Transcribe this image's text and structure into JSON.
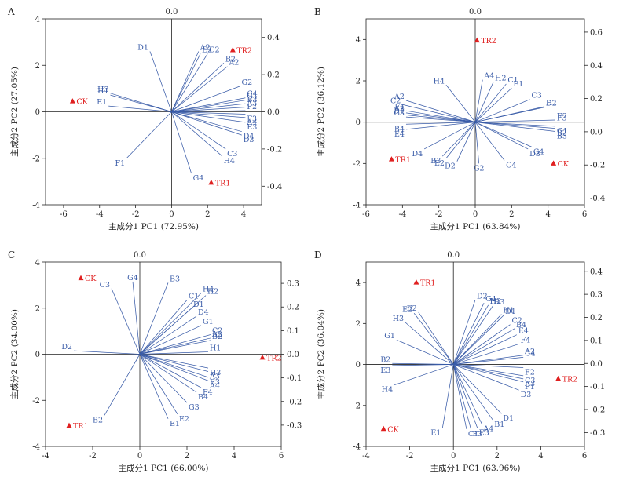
{
  "figure": {
    "colors": {
      "vector": "#3a5ca8",
      "sample": "#e02020",
      "axis": "#222222"
    },
    "panels": [
      {
        "letter": "A",
        "top_label": "0.0",
        "xlabel": "主成分1 PC1 (72.95%)",
        "ylabel": "主成分2 PC2 (27.05%)",
        "xlim": [
          -7,
          5
        ],
        "ylim": [
          -4,
          4
        ],
        "xticks": [
          -6,
          -4,
          -2,
          0,
          2,
          4
        ],
        "yticks": [
          -4,
          -2,
          0,
          2,
          4
        ],
        "rticks": [
          -0.4,
          -0.2,
          0.0,
          0.2,
          0.4
        ],
        "rlim": [
          -0.5,
          0.5
        ],
        "samples": [
          {
            "name": "CK",
            "x": -5.5,
            "y": 0.45
          },
          {
            "name": "TR2",
            "x": 3.4,
            "y": 2.65
          },
          {
            "name": "TR1",
            "x": 2.2,
            "y": -3.05
          }
        ],
        "vectors": [
          {
            "name": "D1",
            "x": -1.2,
            "y": 2.6
          },
          {
            "name": "A2",
            "x": 1.5,
            "y": 2.6
          },
          {
            "name": "E2",
            "x": 1.6,
            "y": 2.5
          },
          {
            "name": "C2",
            "x": 2.0,
            "y": 2.5
          },
          {
            "name": "B2",
            "x": 2.9,
            "y": 2.1
          },
          {
            "name": "A2",
            "x": 3.1,
            "y": 1.95
          },
          {
            "name": "G2",
            "x": 3.8,
            "y": 1.1
          },
          {
            "name": "H3",
            "x": -3.4,
            "y": 0.8
          },
          {
            "name": "H1",
            "x": -3.4,
            "y": 0.72
          },
          {
            "name": "E1",
            "x": -3.5,
            "y": 0.25
          },
          {
            "name": "C4",
            "x": 4.1,
            "y": 0.6
          },
          {
            "name": "G1",
            "x": 4.1,
            "y": 0.5
          },
          {
            "name": "B3",
            "x": 4.1,
            "y": 0.35
          },
          {
            "name": "A3",
            "x": 4.1,
            "y": 0.2
          },
          {
            "name": "F2",
            "x": 4.1,
            "y": 0.05
          },
          {
            "name": "F3",
            "x": 4.1,
            "y": -0.1
          },
          {
            "name": "A4",
            "x": 4.1,
            "y": -0.25
          },
          {
            "name": "E3",
            "x": 4.1,
            "y": -0.45
          },
          {
            "name": "D4",
            "x": 3.9,
            "y": -0.85
          },
          {
            "name": "D3",
            "x": 3.9,
            "y": -1.0
          },
          {
            "name": "C3",
            "x": 3.0,
            "y": -1.6
          },
          {
            "name": "H4",
            "x": 2.8,
            "y": -1.9
          },
          {
            "name": "F1",
            "x": -2.5,
            "y": -2.0
          },
          {
            "name": "G4",
            "x": 1.1,
            "y": -2.65
          }
        ]
      },
      {
        "letter": "B",
        "top_label": "0.0",
        "xlabel": "主成分1 PC1 (63.84%)",
        "ylabel": "主成分2 PC2 (36.12%)",
        "xlim": [
          -6,
          6
        ],
        "ylim": [
          -4,
          5
        ],
        "xticks": [
          -6,
          -4,
          -2,
          0,
          2,
          4,
          6
        ],
        "yticks": [
          -4,
          -2,
          0,
          2,
          4
        ],
        "rticks": [
          -0.4,
          -0.2,
          0.0,
          0.2,
          0.4,
          0.6
        ],
        "rlim": [
          -0.44,
          0.68
        ],
        "samples": [
          {
            "name": "TR2",
            "x": 0.1,
            "y": 3.95
          },
          {
            "name": "TR1",
            "x": -4.6,
            "y": -1.8
          },
          {
            "name": "CK",
            "x": 4.3,
            "y": -2.0
          }
        ],
        "vectors": [
          {
            "name": "A4",
            "x": 0.4,
            "y": 2.05
          },
          {
            "name": "H4",
            "x": -1.6,
            "y": 1.8
          },
          {
            "name": "H2",
            "x": 1.0,
            "y": 1.95
          },
          {
            "name": "C1",
            "x": 1.7,
            "y": 1.85
          },
          {
            "name": "E1",
            "x": 2.0,
            "y": 1.65
          },
          {
            "name": "C3",
            "x": 3.0,
            "y": 1.1
          },
          {
            "name": "A2",
            "x": -3.8,
            "y": 1.05
          },
          {
            "name": "C2",
            "x": -4.0,
            "y": 0.85
          },
          {
            "name": "H1",
            "x": 3.8,
            "y": 0.75
          },
          {
            "name": "D2",
            "x": 3.8,
            "y": 0.72
          },
          {
            "name": "F4",
            "x": -3.8,
            "y": 0.55
          },
          {
            "name": "A3",
            "x": -3.8,
            "y": 0.45
          },
          {
            "name": "D1",
            "x": -3.8,
            "y": 0.35
          },
          {
            "name": "G3",
            "x": -3.8,
            "y": 0.25
          },
          {
            "name": "B4",
            "x": -3.8,
            "y": -0.1
          },
          {
            "name": "E4",
            "x": -3.8,
            "y": -0.35
          },
          {
            "name": "E2",
            "x": 4.4,
            "y": 0.1
          },
          {
            "name": "F3",
            "x": 4.4,
            "y": 0.0
          },
          {
            "name": "G1",
            "x": 4.4,
            "y": -0.2
          },
          {
            "name": "B2",
            "x": 4.4,
            "y": -0.3
          },
          {
            "name": "B3",
            "x": 4.4,
            "y": -0.45
          },
          {
            "name": "D4",
            "x": -2.8,
            "y": -1.3
          },
          {
            "name": "B3",
            "x": -1.8,
            "y": -1.65
          },
          {
            "name": "E2",
            "x": -1.6,
            "y": -1.75
          },
          {
            "name": "D2",
            "x": -1.0,
            "y": -1.9
          },
          {
            "name": "G2",
            "x": 0.2,
            "y": -2.0
          },
          {
            "name": "C4",
            "x": 1.6,
            "y": -1.85
          },
          {
            "name": "D3",
            "x": 2.9,
            "y": -1.3
          },
          {
            "name": "G4",
            "x": 3.1,
            "y": -1.2
          }
        ]
      },
      {
        "letter": "C",
        "top_label": "0.0",
        "xlabel": "主成分1 PC1 (66.00%)",
        "ylabel": "主成分2 PC2 (34.00%)",
        "xlim": [
          -4,
          6
        ],
        "ylim": [
          -4,
          4
        ],
        "xticks": [
          -4,
          -2,
          0,
          2,
          4,
          6
        ],
        "yticks": [
          -4,
          -2,
          0,
          2,
          4
        ],
        "rticks": [
          -0.3,
          -0.2,
          -0.1,
          0.0,
          0.1,
          0.2,
          0.3
        ],
        "rlim": [
          -0.39,
          0.39
        ],
        "samples": [
          {
            "name": "CK",
            "x": -2.5,
            "y": 3.3
          },
          {
            "name": "TR2",
            "x": 5.2,
            "y": -0.15
          },
          {
            "name": "TR1",
            "x": -3.0,
            "y": -3.1
          }
        ],
        "vectors": [
          {
            "name": "C3",
            "x": -1.2,
            "y": 2.85
          },
          {
            "name": "G4",
            "x": -0.3,
            "y": 3.15
          },
          {
            "name": "B3",
            "x": 1.2,
            "y": 3.1
          },
          {
            "name": "H4",
            "x": 2.6,
            "y": 2.65
          },
          {
            "name": "H2",
            "x": 2.8,
            "y": 2.55
          },
          {
            "name": "C1",
            "x": 2.0,
            "y": 2.35
          },
          {
            "name": "D1",
            "x": 2.2,
            "y": 2.0
          },
          {
            "name": "D4",
            "x": 2.4,
            "y": 1.65
          },
          {
            "name": "G1",
            "x": 2.6,
            "y": 1.25
          },
          {
            "name": "C2",
            "x": 3.0,
            "y": 0.85
          },
          {
            "name": "A2",
            "x": 3.0,
            "y": 0.7
          },
          {
            "name": "B2",
            "x": 3.0,
            "y": 0.6
          },
          {
            "name": "H1",
            "x": 2.9,
            "y": 0.1
          },
          {
            "name": "D2",
            "x": -2.8,
            "y": 0.15
          },
          {
            "name": "H3",
            "x": 2.9,
            "y": -0.6
          },
          {
            "name": "A3",
            "x": 2.9,
            "y": -0.75
          },
          {
            "name": "E3",
            "x": 2.9,
            "y": -1.0
          },
          {
            "name": "A4",
            "x": 2.9,
            "y": -1.15
          },
          {
            "name": "F4",
            "x": 2.6,
            "y": -1.45
          },
          {
            "name": "B4",
            "x": 2.4,
            "y": -1.65
          },
          {
            "name": "G3",
            "x": 2.0,
            "y": -2.1
          },
          {
            "name": "E2",
            "x": 1.6,
            "y": -2.6
          },
          {
            "name": "E1",
            "x": 1.2,
            "y": -2.8
          },
          {
            "name": "B2",
            "x": -1.5,
            "y": -2.65
          }
        ]
      },
      {
        "letter": "D",
        "top_label": "0.0",
        "xlabel": "主成分1 PC1 (63.96%)",
        "ylabel": "主成分2 PC2 (36.04%)",
        "xlim": [
          -4,
          6
        ],
        "ylim": [
          -4,
          5
        ],
        "xticks": [
          -4,
          -2,
          0,
          2,
          4,
          6
        ],
        "yticks": [
          -4,
          -2,
          0,
          2,
          4
        ],
        "rticks": [
          -0.3,
          -0.2,
          -0.1,
          0.0,
          0.1,
          0.2,
          0.3,
          0.4
        ],
        "rlim": [
          -0.36,
          0.44
        ],
        "samples": [
          {
            "name": "TR1",
            "x": -1.7,
            "y": 4.0
          },
          {
            "name": "TR2",
            "x": 4.8,
            "y": -0.7
          },
          {
            "name": "CK",
            "x": -3.2,
            "y": -3.15
          }
        ],
        "vectors": [
          {
            "name": "D2",
            "x": 1.0,
            "y": 3.15
          },
          {
            "name": "G4",
            "x": 1.4,
            "y": 3.0
          },
          {
            "name": "H2",
            "x": 1.6,
            "y": 2.9
          },
          {
            "name": "B3",
            "x": 1.8,
            "y": 2.85
          },
          {
            "name": "H1",
            "x": 2.2,
            "y": 2.45
          },
          {
            "name": "D1",
            "x": 2.3,
            "y": 2.4
          },
          {
            "name": "C2",
            "x": 2.6,
            "y": 1.95
          },
          {
            "name": "B4",
            "x": 2.8,
            "y": 1.75
          },
          {
            "name": "E4",
            "x": 2.9,
            "y": 1.45
          },
          {
            "name": "F4",
            "x": 3.0,
            "y": 1.0
          },
          {
            "name": "A2",
            "x": 3.2,
            "y": 0.45
          },
          {
            "name": "C4",
            "x": 3.2,
            "y": 0.35
          },
          {
            "name": "F2",
            "x": 3.2,
            "y": -0.15
          },
          {
            "name": "C3",
            "x": 3.2,
            "y": -0.55
          },
          {
            "name": "A3",
            "x": 3.2,
            "y": -0.7
          },
          {
            "name": "F1",
            "x": 3.2,
            "y": -0.85
          },
          {
            "name": "D3",
            "x": 3.0,
            "y": -1.25
          },
          {
            "name": "D1",
            "x": 2.2,
            "y": -2.4
          },
          {
            "name": "B1",
            "x": 1.8,
            "y": -2.7
          },
          {
            "name": "A4",
            "x": 1.3,
            "y": -2.9
          },
          {
            "name": "E3",
            "x": 1.1,
            "y": -3.1
          },
          {
            "name": "F3",
            "x": 0.8,
            "y": -3.15
          },
          {
            "name": "C1",
            "x": 0.6,
            "y": -3.15
          },
          {
            "name": "E1",
            "x": -0.5,
            "y": -3.1
          },
          {
            "name": "H4",
            "x": -2.7,
            "y": -1.0
          },
          {
            "name": "B2",
            "x": -2.8,
            "y": 0.05
          },
          {
            "name": "E3",
            "x": -2.8,
            "y": -0.05
          },
          {
            "name": "G1",
            "x": -2.6,
            "y": 1.2
          },
          {
            "name": "H3",
            "x": -2.2,
            "y": 2.05
          },
          {
            "name": "E2",
            "x": -1.8,
            "y": 2.5
          },
          {
            "name": "E2",
            "x": -1.6,
            "y": 2.55
          }
        ]
      }
    ]
  },
  "chart_data": [
    {
      "type": "scatter",
      "panel": "A",
      "xlabel": "主成分1 PC1 (72.95%)",
      "ylabel": "主成分2 PC2 (27.05%)",
      "xlim": [
        -7,
        5
      ],
      "ylim": [
        -4,
        4
      ],
      "grid": false,
      "legend": "none"
    },
    {
      "type": "scatter",
      "panel": "B",
      "xlabel": "主成分1 PC1 (63.84%)",
      "ylabel": "主成分2 PC2 (36.12%)",
      "xlim": [
        -6,
        6
      ],
      "ylim": [
        -4,
        5
      ],
      "grid": false,
      "legend": "none"
    },
    {
      "type": "scatter",
      "panel": "C",
      "xlabel": "主成分1 PC1 (66.00%)",
      "ylabel": "主成分2 PC2 (34.00%)",
      "xlim": [
        -4,
        6
      ],
      "ylim": [
        -4,
        4
      ],
      "grid": false,
      "legend": "none"
    },
    {
      "type": "scatter",
      "panel": "D",
      "xlabel": "主成分1 PC1 (63.96%)",
      "ylabel": "主成分2 PC2 (36.04%)",
      "xlim": [
        -4,
        6
      ],
      "ylim": [
        -4,
        5
      ],
      "grid": false,
      "legend": "none"
    }
  ]
}
